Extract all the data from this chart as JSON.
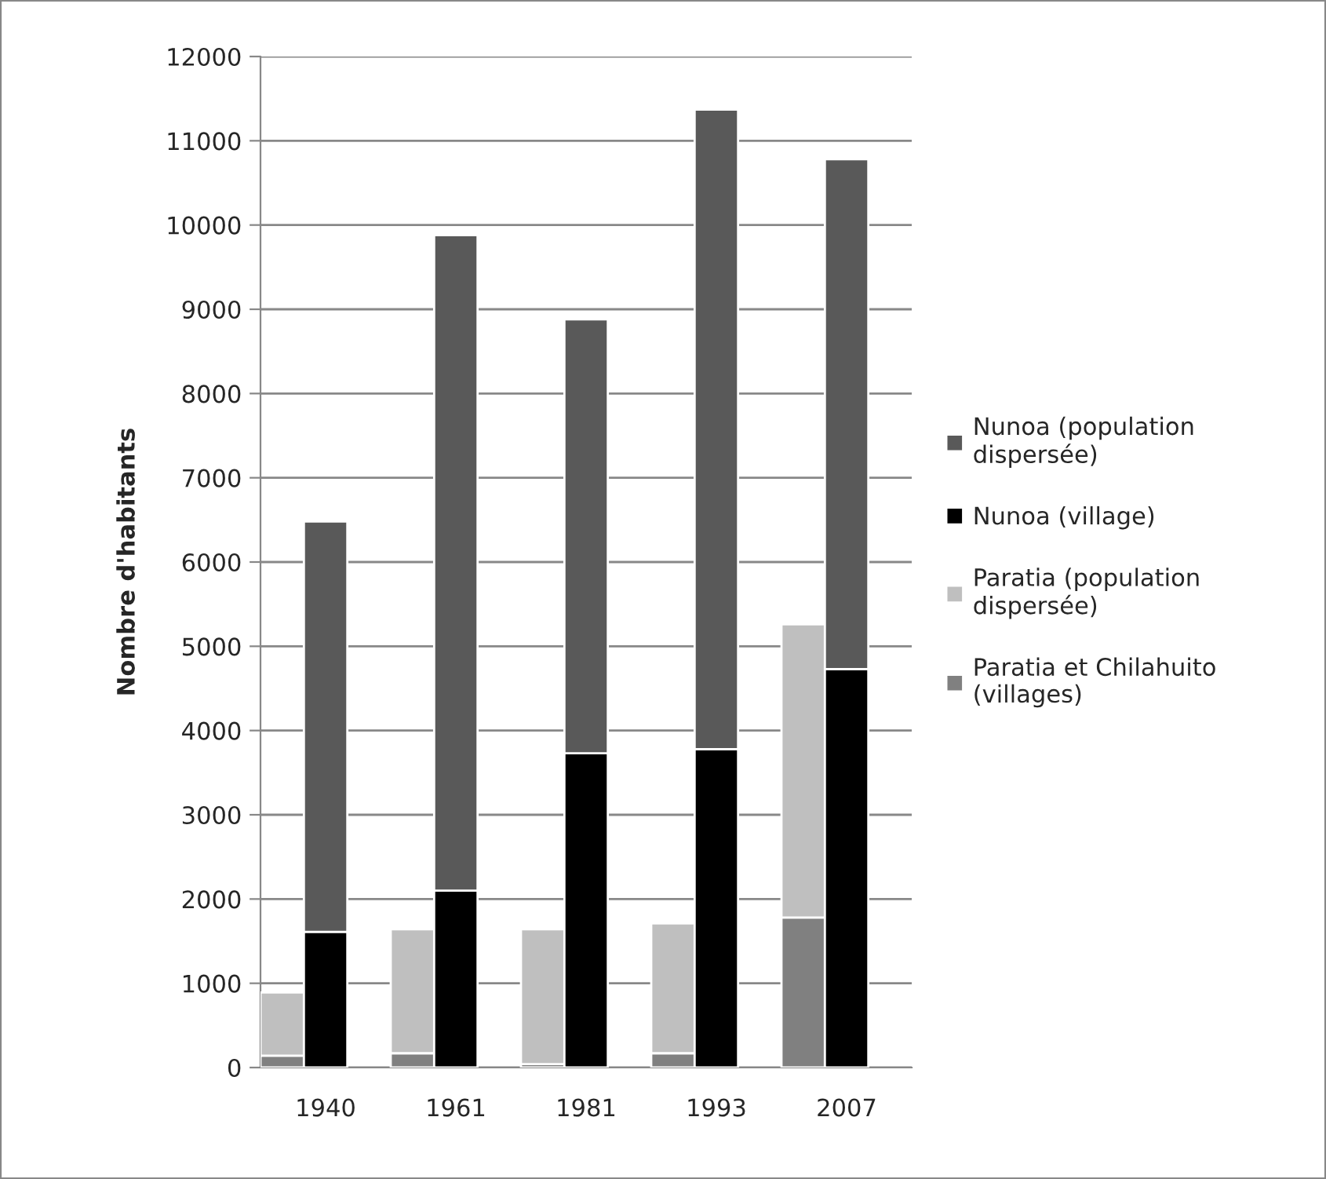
{
  "chart_data": {
    "type": "bar",
    "stacked": true,
    "ylabel": "Nombre d'habitants",
    "categories": [
      null,
      "1940",
      null,
      null,
      "1961",
      null,
      null,
      "1981",
      null,
      null,
      "1993",
      null,
      null,
      "2007",
      null
    ],
    "ylim": [
      0,
      12000
    ],
    "yticks": [
      0,
      1000,
      2000,
      3000,
      4000,
      5000,
      6000,
      7000,
      8000,
      9000,
      10000,
      11000,
      12000
    ],
    "grid": "y",
    "legend": "right",
    "series": [
      {
        "name": "Paratia et Chilahuito\n(villages)",
        "color": "#808080",
        "values": [
          140,
          null,
          null,
          170,
          null,
          null,
          40,
          null,
          null,
          170,
          null,
          null,
          1780,
          null,
          null
        ]
      },
      {
        "name": "Paratia (population\ndispersée)",
        "color": "#bfbfbf",
        "values": [
          750,
          null,
          null,
          1470,
          null,
          null,
          1600,
          null,
          null,
          1540,
          null,
          null,
          3480,
          null,
          null
        ]
      },
      {
        "name": "Nunoa (village)",
        "color": "#000000",
        "values": [
          null,
          1610,
          null,
          null,
          2100,
          null,
          null,
          3730,
          null,
          null,
          3780,
          null,
          null,
          4730,
          null
        ]
      },
      {
        "name": "Nunoa (population\ndispersée)",
        "color": "#595959",
        "values": [
          null,
          4870,
          null,
          null,
          7780,
          null,
          null,
          5150,
          null,
          null,
          7590,
          null,
          null,
          6050,
          null
        ]
      }
    ]
  }
}
